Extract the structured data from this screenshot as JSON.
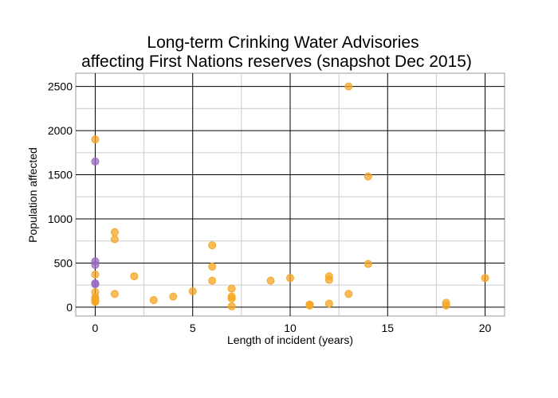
{
  "chart_data": {
    "type": "scatter",
    "title_line1": "Long-term Crinking Water Advisories",
    "title_line2": "affecting First Nations reserves (snapshot Dec 2015)",
    "xlabel": "Length of incident (years)",
    "ylabel": "Population affected",
    "xlim": [
      -1,
      21
    ],
    "ylim": [
      -100,
      2650
    ],
    "x_ticks": [
      0,
      5,
      10,
      15,
      20
    ],
    "y_ticks": [
      0,
      500,
      1000,
      1500,
      2000,
      2500
    ],
    "grid": true,
    "series": [
      {
        "color": "#f5a623",
        "points": [
          [
            0,
            1900
          ],
          [
            0,
            370
          ],
          [
            0,
            170
          ],
          [
            0,
            110
          ],
          [
            0,
            90
          ],
          [
            0,
            70
          ],
          [
            0,
            60
          ],
          [
            1,
            850
          ],
          [
            1,
            770
          ],
          [
            1,
            150
          ],
          [
            2,
            350
          ],
          [
            3,
            80
          ],
          [
            4,
            120
          ],
          [
            5,
            180
          ],
          [
            6,
            700
          ],
          [
            6,
            460
          ],
          [
            6,
            300
          ],
          [
            7,
            210
          ],
          [
            7,
            120
          ],
          [
            7,
            100
          ],
          [
            7,
            10
          ],
          [
            9,
            300
          ],
          [
            10,
            330
          ],
          [
            11,
            30
          ],
          [
            11,
            20
          ],
          [
            12,
            350
          ],
          [
            12,
            310
          ],
          [
            12,
            40
          ],
          [
            13,
            2500
          ],
          [
            13,
            150
          ],
          [
            14,
            1480
          ],
          [
            14,
            490
          ],
          [
            18,
            50
          ],
          [
            18,
            20
          ],
          [
            20,
            330
          ]
        ]
      },
      {
        "color": "#9b6bc4",
        "points": [
          [
            0,
            1650
          ],
          [
            0,
            520
          ],
          [
            0,
            480
          ],
          [
            0,
            270
          ],
          [
            0,
            260
          ]
        ]
      }
    ]
  }
}
